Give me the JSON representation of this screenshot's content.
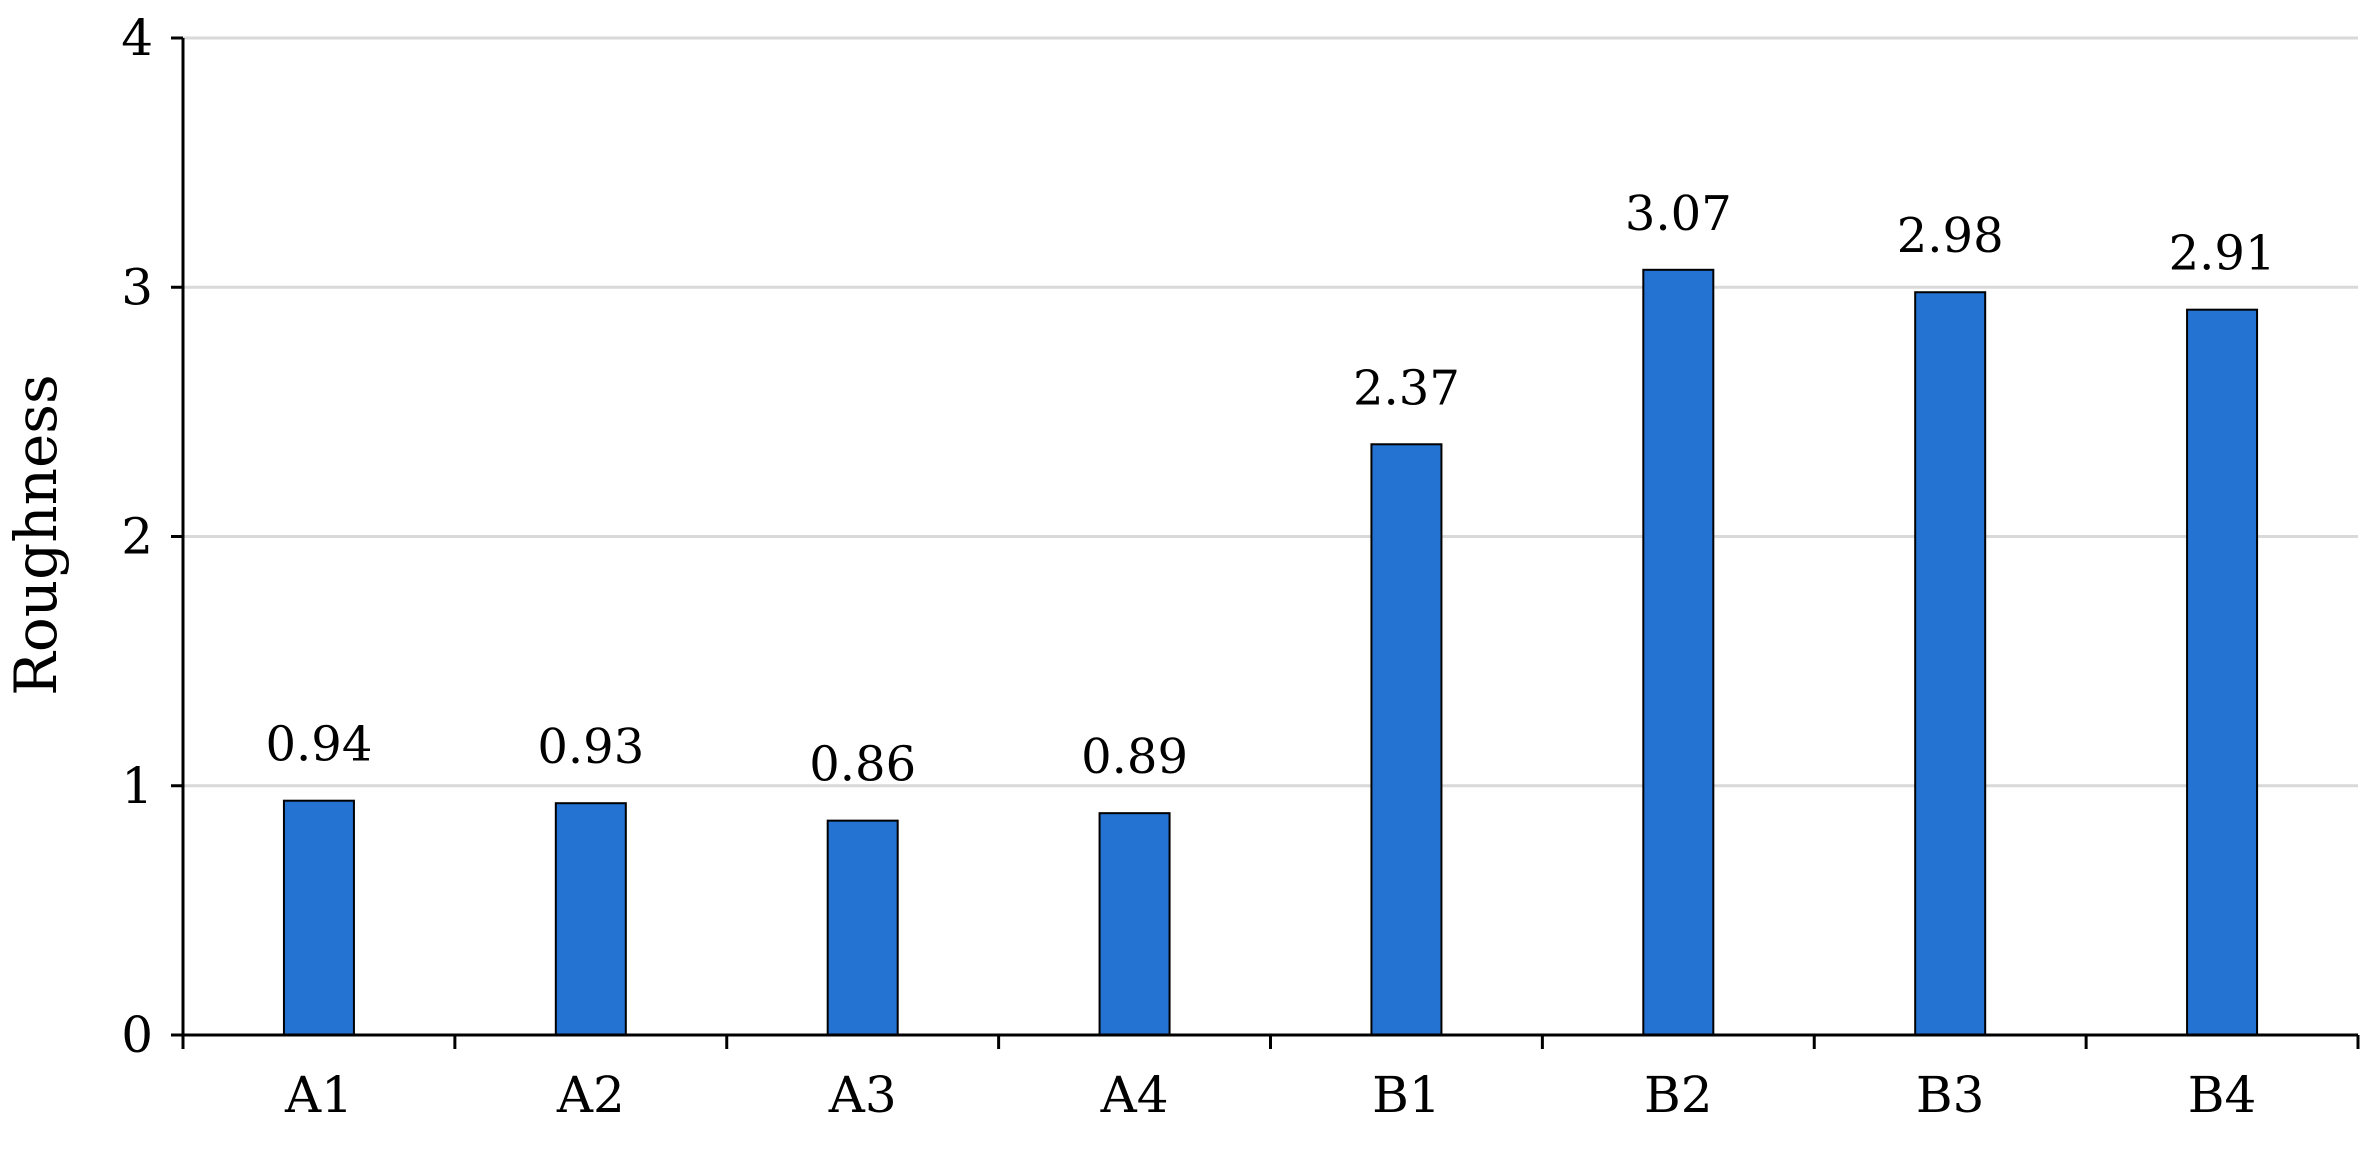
{
  "chart_data": {
    "type": "bar",
    "title": "",
    "xlabel": "",
    "ylabel": "Roughness",
    "categories": [
      "A1",
      "A2",
      "A3",
      "A4",
      "B1",
      "B2",
      "B3",
      "B4"
    ],
    "values": [
      0.94,
      0.93,
      0.86,
      0.89,
      2.37,
      3.07,
      2.98,
      2.91
    ],
    "data_labels": [
      "0.94",
      "0.93",
      "0.86",
      "0.89",
      "2.37",
      "3.07",
      "2.98",
      "2.91"
    ],
    "ylim": [
      0,
      4
    ],
    "yticks": [
      0,
      1,
      2,
      3,
      4
    ],
    "ytick_labels": [
      "0",
      "1",
      "2",
      "3",
      "4"
    ],
    "grid": true,
    "legend": "none",
    "colors": {
      "bar_fill": "#2472D2",
      "bar_stroke": "#000000",
      "grid": "#D9D9D9",
      "axis": "#000000"
    }
  }
}
